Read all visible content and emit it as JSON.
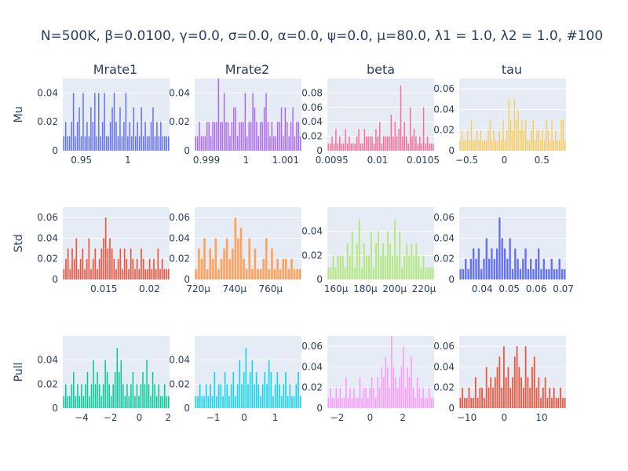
{
  "title": "N=500K, β=0.0100, γ=0.0, σ=0.0,  α=0.0, ψ=0.0, μ=80.0, λ1 = 1.0, λ2 = 1.0, #100",
  "column_titles": [
    "Mrate1",
    "Mrate2",
    "beta",
    "tau"
  ],
  "row_labels": [
    "Mu",
    "Std",
    "Pull"
  ],
  "chart_data": [
    {
      "type": "bar",
      "row": "Mu",
      "column": "Mrate1",
      "color": "#636efa",
      "xlim": [
        0.93,
        1.045
      ],
      "ylim": [
        0,
        0.05
      ],
      "xticks": [
        0.95,
        1
      ],
      "xtick_labels": [
        "0.95",
        "1"
      ],
      "yticks": [
        0,
        0.02,
        0.04
      ],
      "ytick_labels": [
        "0",
        "0.02",
        "0.04"
      ],
      "values": [
        0.01,
        0.02,
        0.01,
        0.01,
        0.02,
        0.04,
        0.01,
        0.02,
        0.03,
        0.01,
        0.04,
        0.01,
        0.02,
        0.01,
        0.03,
        0.02,
        0.04,
        0.01,
        0.04,
        0.01,
        0.02,
        0.04,
        0.01,
        0.01,
        0.02,
        0.03,
        0.04,
        0.02,
        0.01,
        0.03,
        0.01,
        0.02,
        0.04,
        0.01,
        0.02,
        0.01,
        0.03,
        0.01,
        0.02,
        0.01,
        0.03,
        0.01,
        0.02,
        0.01,
        0.01,
        0.02,
        0.03,
        0.01,
        0.02,
        0.01,
        0.02,
        0.01,
        0.01,
        0.01,
        0.01
      ]
    },
    {
      "type": "bar",
      "row": "Mu",
      "column": "Mrate2",
      "color": "#ab63fa",
      "xlim": [
        0.9987,
        1.0014
      ],
      "ylim": [
        0,
        0.05
      ],
      "xticks": [
        0.999,
        1,
        1.001
      ],
      "xtick_labels": [
        "0.999",
        "1",
        "1.001"
      ],
      "yticks": [
        0,
        0.02,
        0.04
      ],
      "ytick_labels": [
        "0",
        "0.02",
        "0.04"
      ],
      "values": [
        0.01,
        0.01,
        0.02,
        0.01,
        0.01,
        0.01,
        0.02,
        0.02,
        0.01,
        0.02,
        0.02,
        0.02,
        0.05,
        0.02,
        0.02,
        0.04,
        0.02,
        0.02,
        0.01,
        0.02,
        0.03,
        0.03,
        0.01,
        0.02,
        0.02,
        0.02,
        0.04,
        0.01,
        0.02,
        0.02,
        0.04,
        0.03,
        0.02,
        0.01,
        0.02,
        0.02,
        0.03,
        0.04,
        0.02,
        0.01,
        0.02,
        0.01,
        0.01,
        0.02,
        0.02,
        0.03,
        0.01,
        0.03,
        0.02,
        0.01,
        0.02,
        0.03,
        0.01,
        0.02,
        0.02,
        0.01
      ]
    },
    {
      "type": "bar",
      "row": "Mu",
      "column": "beta",
      "color": "#ff6692",
      "xlim": [
        0.00945,
        0.01062
      ],
      "ylim": [
        0,
        0.1
      ],
      "xticks": [
        0.0095,
        0.01,
        0.0105
      ],
      "xtick_labels": [
        "0.0095",
        "0.01",
        "0.0105"
      ],
      "yticks": [
        0,
        0.02,
        0.04,
        0.06,
        0.08
      ],
      "ytick_labels": [
        "0",
        "0.02",
        "0.04",
        "0.06",
        "0.08"
      ],
      "values": [
        0.01,
        0.01,
        0.02,
        0.01,
        0.03,
        0.01,
        0.02,
        0.01,
        0.01,
        0.03,
        0.01,
        0.02,
        0.01,
        0.01,
        0.01,
        0.02,
        0.03,
        0.01,
        0.01,
        0.03,
        0.02,
        0.02,
        0.02,
        0.02,
        0.01,
        0.03,
        0.02,
        0.04,
        0.01,
        0.02,
        0.02,
        0.02,
        0.02,
        0.05,
        0.02,
        0.04,
        0.02,
        0.03,
        0.09,
        0.02,
        0.04,
        0.02,
        0.01,
        0.06,
        0.02,
        0.03,
        0.02,
        0.01,
        0.02,
        0.01,
        0.06,
        0.01,
        0.02,
        0.01,
        0.01,
        0.01
      ]
    },
    {
      "type": "bar",
      "row": "Mu",
      "column": "tau",
      "color": "#fecb52",
      "xlim": [
        -0.6,
        0.82
      ],
      "ylim": [
        0,
        0.07
      ],
      "xticks": [
        -0.5,
        0,
        0.5
      ],
      "xtick_labels": [
        "−0.5",
        "0",
        "0.5"
      ],
      "yticks": [
        0,
        0.02,
        0.04,
        0.06
      ],
      "ytick_labels": [
        "0",
        "0.02",
        "0.04",
        "0.06"
      ],
      "values": [
        0.01,
        0.02,
        0.01,
        0.01,
        0.02,
        0.01,
        0.03,
        0.01,
        0.01,
        0.02,
        0.01,
        0.02,
        0.01,
        0.01,
        0.01,
        0.02,
        0.03,
        0.01,
        0.02,
        0.01,
        0.01,
        0.02,
        0.01,
        0.03,
        0.01,
        0.02,
        0.05,
        0.03,
        0.02,
        0.05,
        0.03,
        0.04,
        0.02,
        0.03,
        0.02,
        0.03,
        0.01,
        0.01,
        0.02,
        0.03,
        0.01,
        0.02,
        0.02,
        0.01,
        0.02,
        0.01,
        0.03,
        0.02,
        0.01,
        0.03,
        0.01,
        0.02,
        0.01,
        0.01,
        0.03,
        0.03,
        0.01
      ]
    },
    {
      "type": "bar",
      "row": "Std",
      "column": "Mrate1",
      "color": "#ef553b",
      "xlim": [
        0.0105,
        0.0222
      ],
      "ylim": [
        0,
        0.07
      ],
      "xticks": [
        0.015,
        0.02
      ],
      "xtick_labels": [
        "0.015",
        "0.02"
      ],
      "yticks": [
        0,
        0.02,
        0.04,
        0.06
      ],
      "ytick_labels": [
        "0",
        "0.02",
        "0.04",
        "0.06"
      ],
      "values": [
        0.01,
        0.02,
        0.03,
        0.01,
        0.03,
        0.02,
        0.04,
        0.01,
        0.02,
        0.03,
        0.01,
        0.02,
        0.04,
        0.01,
        0.02,
        0.03,
        0.01,
        0.02,
        0.03,
        0.04,
        0.06,
        0.03,
        0.04,
        0.03,
        0.02,
        0.01,
        0.02,
        0.03,
        0.01,
        0.03,
        0.02,
        0.01,
        0.03,
        0.02,
        0.01,
        0.02,
        0.01,
        0.03,
        0.02,
        0.01,
        0.01,
        0.02,
        0.01,
        0.02,
        0.01,
        0.03,
        0.01,
        0.02,
        0.01,
        0.01,
        0.01
      ]
    },
    {
      "type": "bar",
      "row": "Std",
      "column": "Mrate2",
      "color": "#ffa15a",
      "xlim": [
        0.000718,
        0.000777
      ],
      "ylim": [
        0,
        0.07
      ],
      "xticks": [
        0.00072,
        0.00074,
        0.00076
      ],
      "xtick_labels": [
        "720μ",
        "740μ",
        "760μ"
      ],
      "yticks": [
        0,
        0.02,
        0.04,
        0.06
      ],
      "ytick_labels": [
        "0",
        "0.02",
        "0.04",
        "0.06"
      ],
      "values": [
        0.01,
        0.03,
        0.02,
        0.04,
        0.01,
        0.03,
        0.02,
        0.04,
        0.01,
        0.02,
        0.03,
        0.04,
        0.02,
        0.03,
        0.06,
        0.04,
        0.05,
        0.02,
        0.01,
        0.04,
        0.01,
        0.03,
        0.01,
        0.01,
        0.02,
        0.04,
        0.01,
        0.03,
        0.01,
        0.02,
        0.01,
        0.02,
        0.02,
        0.01,
        0.02,
        0.01,
        0.01,
        0.01
      ]
    },
    {
      "type": "bar",
      "row": "Std",
      "column": "beta",
      "color": "#b6e880",
      "xlim": [
        0.000154,
        0.000227
      ],
      "ylim": [
        0,
        0.06
      ],
      "xticks": [
        0.00016,
        0.00018,
        0.0002,
        0.00022
      ],
      "xtick_labels": [
        "160μ",
        "180μ",
        "200μ",
        "220μ"
      ],
      "yticks": [
        0,
        0.02,
        0.04
      ],
      "ytick_labels": [
        "0",
        "0.02",
        "0.04"
      ],
      "values": [
        0.01,
        0.01,
        0.02,
        0.01,
        0.02,
        0.02,
        0.02,
        0.01,
        0.03,
        0.02,
        0.04,
        0.01,
        0.03,
        0.05,
        0.01,
        0.03,
        0.02,
        0.02,
        0.04,
        0.01,
        0.03,
        0.04,
        0.02,
        0.03,
        0.02,
        0.04,
        0.03,
        0.02,
        0.05,
        0.02,
        0.04,
        0.01,
        0.02,
        0.03,
        0.02,
        0.03,
        0.02,
        0.03,
        0.02,
        0.01,
        0.02,
        0.01,
        0.01,
        0.01,
        0.01
      ]
    },
    {
      "type": "bar",
      "row": "Std",
      "column": "tau",
      "color": "#636efa",
      "xlim": [
        0.0315,
        0.071
      ],
      "ylim": [
        0,
        0.07
      ],
      "xticks": [
        0.04,
        0.05,
        0.06,
        0.07
      ],
      "xtick_labels": [
        "0.04",
        "0.05",
        "0.06",
        "0.07"
      ],
      "yticks": [
        0,
        0.02,
        0.04,
        0.06
      ],
      "ytick_labels": [
        "0",
        "0.02",
        "0.04",
        "0.06"
      ],
      "values": [
        0.01,
        0.01,
        0.02,
        0.01,
        0.02,
        0.03,
        0.02,
        0.03,
        0.01,
        0.02,
        0.04,
        0.02,
        0.03,
        0.02,
        0.03,
        0.06,
        0.04,
        0.03,
        0.02,
        0.04,
        0.01,
        0.03,
        0.02,
        0.01,
        0.02,
        0.03,
        0.01,
        0.02,
        0.01,
        0.02,
        0.03,
        0.01,
        0.02,
        0.01,
        0.01,
        0.02,
        0.01,
        0.01,
        0.02,
        0.01,
        0.01
      ]
    },
    {
      "type": "bar",
      "row": "Pull",
      "column": "Mrate1",
      "color": "#00cc96",
      "xlim": [
        -5.3,
        2.1
      ],
      "ylim": [
        0,
        0.06
      ],
      "xticks": [
        -4,
        -2,
        0,
        2
      ],
      "xtick_labels": [
        "−4",
        "−2",
        "0",
        "2"
      ],
      "yticks": [
        0,
        0.02,
        0.04
      ],
      "ytick_labels": [
        "0",
        "0.02",
        "0.04"
      ],
      "values": [
        0.01,
        0.02,
        0.01,
        0.01,
        0.02,
        0.03,
        0.01,
        0.02,
        0.01,
        0.02,
        0.01,
        0.02,
        0.03,
        0.01,
        0.02,
        0.04,
        0.02,
        0.03,
        0.02,
        0.01,
        0.02,
        0.04,
        0.03,
        0.02,
        0.01,
        0.02,
        0.03,
        0.05,
        0.03,
        0.04,
        0.02,
        0.01,
        0.02,
        0.01,
        0.02,
        0.03,
        0.01,
        0.02,
        0.01,
        0.02,
        0.03,
        0.02,
        0.04,
        0.02,
        0.01,
        0.03,
        0.02,
        0.01,
        0.02,
        0.01,
        0.01,
        0.02,
        0.01,
        0.01
      ]
    },
    {
      "type": "bar",
      "row": "Pull",
      "column": "Mrate2",
      "color": "#19d3f3",
      "xlim": [
        -1.6,
        1.85
      ],
      "ylim": [
        0,
        0.06
      ],
      "xticks": [
        -1,
        0,
        1
      ],
      "xtick_labels": [
        "−1",
        "0",
        "1"
      ],
      "yticks": [
        0,
        0.02,
        0.04
      ],
      "ytick_labels": [
        "0",
        "0.02",
        "0.04"
      ],
      "values": [
        0.01,
        0.01,
        0.02,
        0.01,
        0.01,
        0.02,
        0.01,
        0.02,
        0.01,
        0.03,
        0.01,
        0.02,
        0.02,
        0.01,
        0.03,
        0.02,
        0.01,
        0.02,
        0.03,
        0.01,
        0.02,
        0.04,
        0.02,
        0.03,
        0.05,
        0.02,
        0.03,
        0.04,
        0.02,
        0.03,
        0.02,
        0.01,
        0.02,
        0.03,
        0.02,
        0.04,
        0.03,
        0.01,
        0.02,
        0.03,
        0.02,
        0.01,
        0.02,
        0.03,
        0.01,
        0.02,
        0.01,
        0.01,
        0.02,
        0.03,
        0.01
      ]
    },
    {
      "type": "bar",
      "row": "Pull",
      "column": "beta",
      "color": "#ff97ff",
      "xlim": [
        -2.6,
        3.9
      ],
      "ylim": [
        0,
        0.07
      ],
      "xticks": [
        -2,
        0,
        2
      ],
      "xtick_labels": [
        "−2",
        "0",
        "2"
      ],
      "yticks": [
        0,
        0.02,
        0.04,
        0.06
      ],
      "ytick_labels": [
        "0",
        "0.02",
        "0.04",
        "0.06"
      ],
      "values": [
        0.01,
        0.02,
        0.01,
        0.01,
        0.02,
        0.01,
        0.02,
        0.01,
        0.01,
        0.03,
        0.01,
        0.02,
        0.01,
        0.02,
        0.01,
        0.01,
        0.03,
        0.01,
        0.02,
        0.02,
        0.01,
        0.02,
        0.03,
        0.02,
        0.01,
        0.03,
        0.02,
        0.04,
        0.03,
        0.05,
        0.04,
        0.02,
        0.07,
        0.04,
        0.03,
        0.02,
        0.03,
        0.04,
        0.06,
        0.02,
        0.04,
        0.03,
        0.05,
        0.02,
        0.01,
        0.03,
        0.02,
        0.01,
        0.02,
        0.01,
        0.01,
        0.02,
        0.01,
        0.01
      ]
    },
    {
      "type": "bar",
      "row": "Pull",
      "column": "tau",
      "color": "#ef553b",
      "xlim": [
        -12,
        16.5
      ],
      "ylim": [
        0,
        0.07
      ],
      "xticks": [
        -10,
        0,
        10
      ],
      "xtick_labels": [
        "−10",
        "0",
        "10"
      ],
      "yticks": [
        0,
        0.02,
        0.04,
        0.06
      ],
      "ytick_labels": [
        "0",
        "0.02",
        "0.04",
        "0.06"
      ],
      "values": [
        0.01,
        0.02,
        0.01,
        0.01,
        0.02,
        0.01,
        0.01,
        0.03,
        0.01,
        0.02,
        0.02,
        0.01,
        0.04,
        0.02,
        0.03,
        0.02,
        0.03,
        0.04,
        0.05,
        0.02,
        0.06,
        0.03,
        0.04,
        0.02,
        0.03,
        0.05,
        0.06,
        0.04,
        0.03,
        0.02,
        0.06,
        0.03,
        0.02,
        0.04,
        0.05,
        0.02,
        0.03,
        0.01,
        0.02,
        0.03,
        0.01,
        0.02,
        0.01,
        0.02,
        0.01,
        0.01,
        0.02,
        0.01,
        0.01
      ]
    }
  ]
}
